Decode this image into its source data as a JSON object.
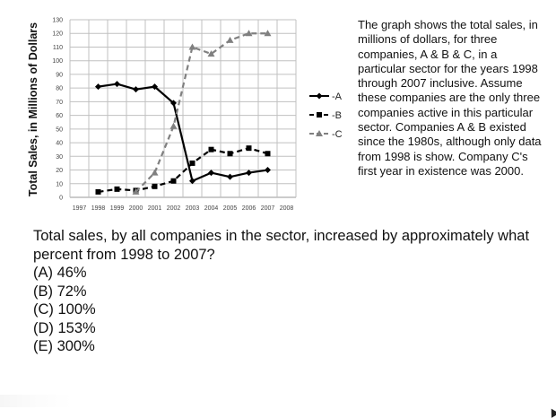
{
  "chart_data": {
    "type": "line",
    "x": [
      "1997",
      "1998",
      "1999",
      "2000",
      "2001",
      "2002",
      "2003",
      "2004",
      "2005",
      "2006",
      "2007",
      "2008"
    ],
    "yticks": [
      "0",
      "10",
      "20",
      "30",
      "40",
      "50",
      "60",
      "70",
      "80",
      "90",
      "100",
      "110",
      "120",
      "130"
    ],
    "ylim": [
      0,
      130
    ],
    "ylabel": "Total Sales, in Millions of Dollars",
    "xlabel": "",
    "grid": true,
    "legend_position": "right",
    "series": [
      {
        "name": "A",
        "line": "solid",
        "marker": "diamond",
        "x": [
          "1998",
          "1999",
          "2000",
          "2001",
          "2002",
          "2003",
          "2004",
          "2005",
          "2006",
          "2007"
        ],
        "values": [
          81,
          83,
          79,
          81,
          69,
          12,
          18,
          15,
          18,
          20
        ]
      },
      {
        "name": "B",
        "line": "dashed",
        "marker": "square",
        "x": [
          "1998",
          "1999",
          "2000",
          "2001",
          "2002",
          "2003",
          "2004",
          "2005",
          "2006",
          "2007"
        ],
        "values": [
          4,
          6,
          5,
          8,
          12,
          25,
          35,
          32,
          36,
          32
        ]
      },
      {
        "name": "C",
        "line": "dashed",
        "marker": "triangle",
        "x": [
          "2000",
          "2001",
          "2002",
          "2003",
          "2004",
          "2005",
          "2006",
          "2007"
        ],
        "values": [
          4,
          18,
          52,
          110,
          105,
          115,
          120,
          120
        ]
      }
    ],
    "colors": {
      "A": "#000000",
      "B": "#000000",
      "C": "#808080",
      "grid": "#c0c0c0"
    }
  },
  "legend_labels": [
    "A",
    "B",
    "C"
  ],
  "side_text": "The graph shows the total sales, in millions of dollars, for three companies, A & B & C, in a particular sector for the years 1998 through 2007 inclusive. Assume these companies are the only three companies active in this particular sector. Companies A & B existed since the 1980s, although only data from 1998 is show.  Company C's first year in existence was 2000.",
  "question": "Total sales, by all companies in the sector, increased by approximately what percent from 1998 to 2007?",
  "options": [
    "(A) 46%",
    "(B) 72%",
    "(C) 100%",
    "(D) 153%",
    "(E) 300%"
  ]
}
